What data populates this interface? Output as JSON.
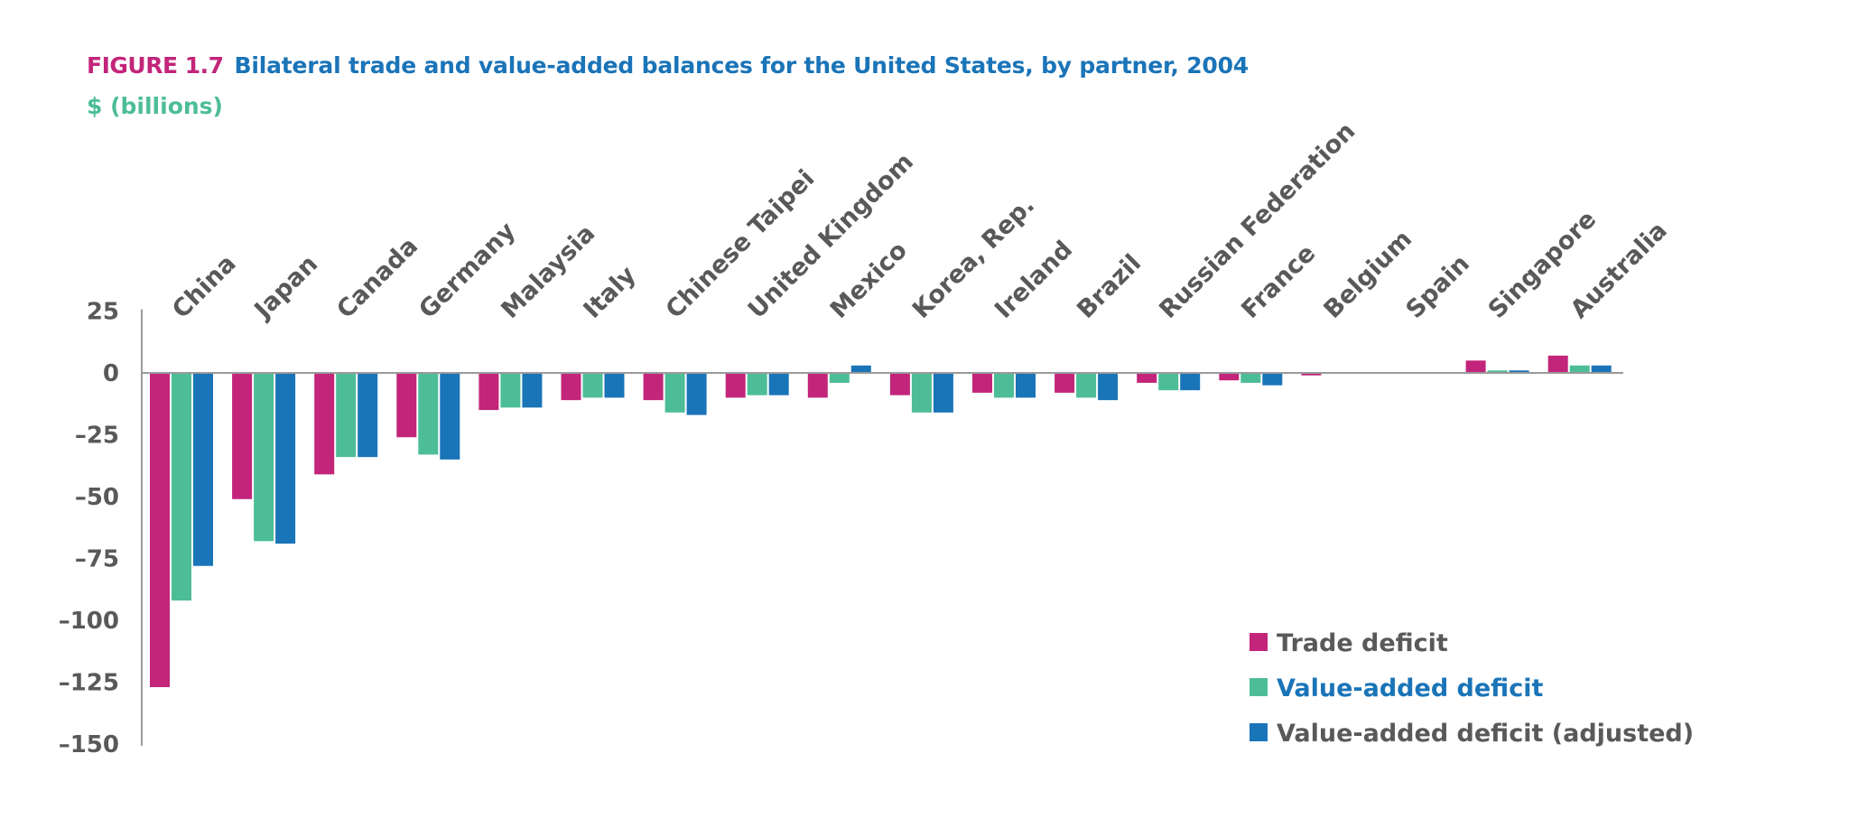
{
  "figure": {
    "label": "FIGURE 1.7",
    "title": "Bilateral trade and value-added balances for the United States, by partner, 2004"
  },
  "chart_data": {
    "type": "bar",
    "subtitle": "$ (billions)",
    "categories": [
      "China",
      "Japan",
      "Canada",
      "Germany",
      "Malaysia",
      "Italy",
      "Chinese Taipei",
      "United Kingdom",
      "Mexico",
      "Korea, Rep.",
      "Ireland",
      "Brazil",
      "Russian Federation",
      "France",
      "Belgium",
      "Spain",
      "Singapore",
      "Australia"
    ],
    "series": [
      {
        "name": "Trade deficit",
        "color": "#c2257a",
        "label_color": "#58595b",
        "values": [
          -127,
          -51,
          -41,
          -26,
          -15,
          -11,
          -11,
          -10,
          -10,
          -9,
          -8,
          -8,
          -4,
          -3,
          -1,
          0,
          5,
          7
        ]
      },
      {
        "name": "Value-added deficit",
        "color": "#4dbd98",
        "label_color": "#1a74b8",
        "values": [
          -92,
          -68,
          -34,
          -33,
          -14,
          -10,
          -16,
          -9,
          -4,
          -16,
          -10,
          -10,
          -7,
          -4,
          0,
          0,
          1,
          3
        ]
      },
      {
        "name": "Value-added deficit (adjusted)",
        "color": "#1a74b8",
        "label_color": "#58595b",
        "values": [
          -78,
          -69,
          -34,
          -35,
          -14,
          -10,
          -17,
          -9,
          3,
          -16,
          -10,
          -11,
          -7,
          -5,
          0,
          0,
          1,
          3
        ]
      }
    ],
    "yticks": [
      25,
      0,
      -25,
      -50,
      -75,
      -100,
      -125,
      -150
    ],
    "ytick_labels": [
      "25",
      "0",
      "–25",
      "–50",
      "–75",
      "–100",
      "–125",
      "–150"
    ],
    "ylim": [
      -150,
      25
    ],
    "legend_position": "bottom-right",
    "grid": false
  }
}
